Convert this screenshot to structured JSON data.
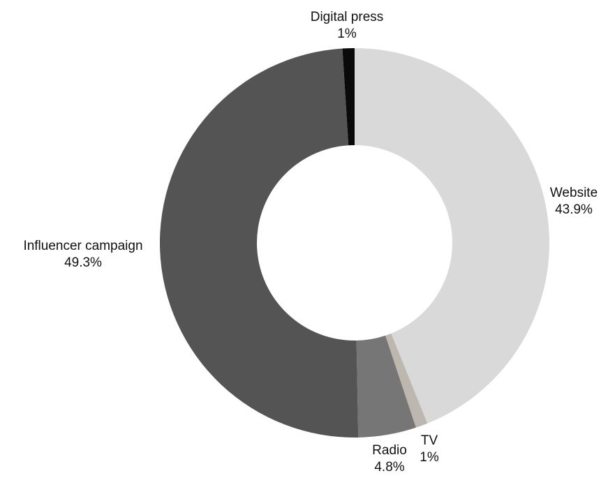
{
  "chart_data": {
    "type": "pie",
    "donut": true,
    "title": "",
    "categories": [
      "Website",
      "TV",
      "Radio",
      "Influencer campaign",
      "Digital press"
    ],
    "values": [
      43.9,
      1,
      4.8,
      49.3,
      1
    ],
    "value_labels": [
      "43.9%",
      "1%",
      "4.8%",
      "49.3%",
      "1%"
    ],
    "colors": [
      "#d9d9d9",
      "#bdb7b0",
      "#767676",
      "#545454",
      "#0a0a0a"
    ],
    "start_angle_deg": 0,
    "direction": "clockwise",
    "legend": "none"
  }
}
